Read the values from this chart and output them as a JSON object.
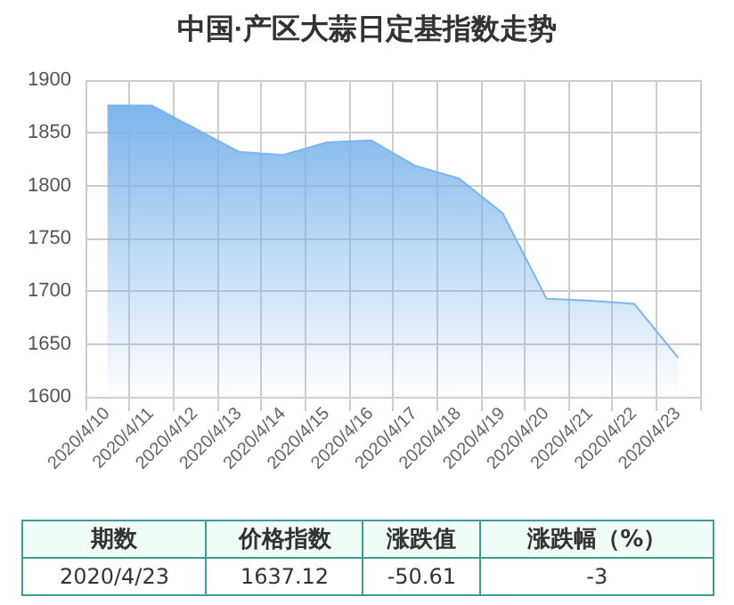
{
  "chart_data": {
    "type": "area",
    "title": "中国·产区大蒜日定基指数走势",
    "categories": [
      "2020/4/10",
      "2020/4/11",
      "2020/4/12",
      "2020/4/13",
      "2020/4/14",
      "2020/4/15",
      "2020/4/16",
      "2020/4/17",
      "2020/4/18",
      "2020/4/19",
      "2020/4/20",
      "2020/4/21",
      "2020/4/22",
      "2020/4/23"
    ],
    "series": [
      {
        "color": "#7cb5ec",
        "values": [
          1876,
          1876,
          1854,
          1832,
          1829,
          1841,
          1843,
          1819,
          1807,
          1774,
          1693,
          1691,
          1688,
          1637
        ]
      }
    ],
    "ylim": [
      1600,
      1900
    ],
    "yticks": [
      1600,
      1650,
      1700,
      1750,
      1800,
      1850,
      1900
    ],
    "grid": true,
    "marker": "none",
    "annotations": [
      "期数",
      "价格指数",
      "涨跌值",
      "涨跌幅（%）",
      "2020/4/23",
      "1637.12",
      "-50.61",
      "-3"
    ]
  }
}
